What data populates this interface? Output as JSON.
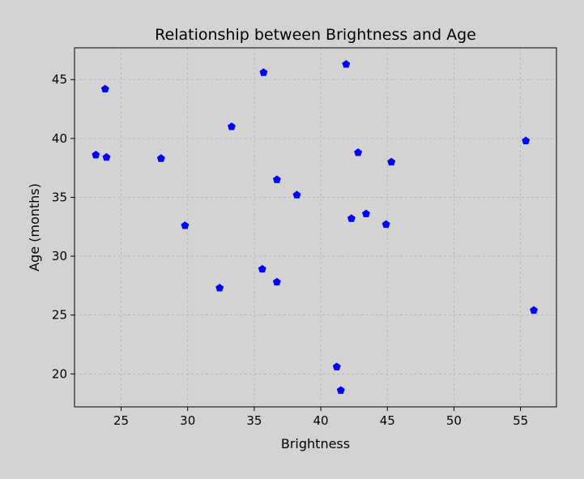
{
  "chart_data": {
    "type": "scatter",
    "title": "Relationship between Brightness and Age",
    "xlabel": "Brightness",
    "ylabel": "Age (months)",
    "xlim": [
      21.5,
      57.7
    ],
    "ylim": [
      17.2,
      47.7
    ],
    "xticks": [
      25,
      30,
      35,
      40,
      45,
      50,
      55
    ],
    "yticks": [
      20,
      25,
      30,
      35,
      40,
      45
    ],
    "grid": true,
    "marker": "pentagon",
    "color": "#0000ff",
    "background_color": "#d3d3d3",
    "series": [
      {
        "points": [
          {
            "x": 23.1,
            "y": 38.6
          },
          {
            "x": 23.8,
            "y": 44.2
          },
          {
            "x": 23.9,
            "y": 38.4
          },
          {
            "x": 28.0,
            "y": 38.3
          },
          {
            "x": 29.8,
            "y": 32.6
          },
          {
            "x": 32.4,
            "y": 27.3
          },
          {
            "x": 33.3,
            "y": 41.0
          },
          {
            "x": 35.6,
            "y": 28.9
          },
          {
            "x": 35.7,
            "y": 45.6
          },
          {
            "x": 36.7,
            "y": 36.5
          },
          {
            "x": 36.7,
            "y": 27.8
          },
          {
            "x": 38.2,
            "y": 35.2
          },
          {
            "x": 41.2,
            "y": 20.6
          },
          {
            "x": 41.5,
            "y": 18.6
          },
          {
            "x": 41.9,
            "y": 46.3
          },
          {
            "x": 42.3,
            "y": 33.2
          },
          {
            "x": 42.8,
            "y": 38.8
          },
          {
            "x": 43.4,
            "y": 33.6
          },
          {
            "x": 44.9,
            "y": 32.7
          },
          {
            "x": 45.3,
            "y": 38.0
          },
          {
            "x": 55.4,
            "y": 39.8
          },
          {
            "x": 56.0,
            "y": 25.4
          }
        ]
      }
    ]
  }
}
